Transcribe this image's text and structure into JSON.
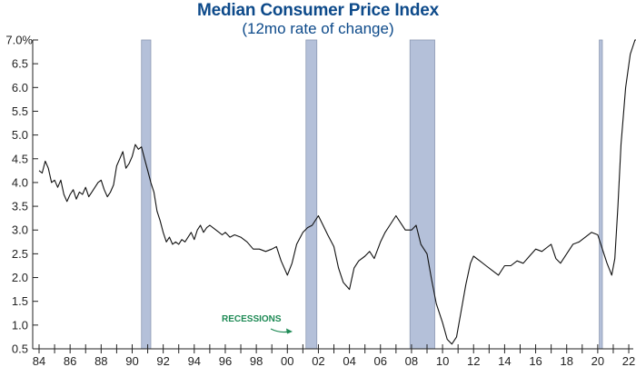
{
  "chart_data": {
    "type": "line",
    "title": "Median Consumer Price Index",
    "subtitle": "(12mo rate of change)",
    "xlabel": "",
    "ylabel": "",
    "ylim": [
      0.5,
      7.0
    ],
    "xlim": [
      1984,
      2022.6
    ],
    "y_ticks": [
      "7.0%",
      "6.5",
      "6.0",
      "5.5",
      "5.0",
      "4.5",
      "4.0",
      "3.5",
      "3.0",
      "2.5",
      "2.0",
      "1.5",
      "1.0",
      "0.5"
    ],
    "y_tick_values": [
      7.0,
      6.5,
      6.0,
      5.5,
      5.0,
      4.5,
      4.0,
      3.5,
      3.0,
      2.5,
      2.0,
      1.5,
      1.0,
      0.5
    ],
    "x_ticks": [
      "84",
      "86",
      "88",
      "90",
      "92",
      "94",
      "96",
      "98",
      "00",
      "02",
      "04",
      "06",
      "08",
      "10",
      "12",
      "14",
      "16",
      "18",
      "20",
      "22"
    ],
    "x_tick_values": [
      1984,
      1986,
      1988,
      1990,
      1992,
      1994,
      1996,
      1998,
      2000,
      2002,
      2004,
      2006,
      2008,
      2010,
      2012,
      2014,
      2016,
      2018,
      2020,
      2022
    ],
    "grid": false,
    "series": [
      {
        "name": "Median CPI 12mo rate of change",
        "color": "#111111",
        "x": [
          1984.0,
          1984.2,
          1984.4,
          1984.6,
          1984.8,
          1985.0,
          1985.2,
          1985.4,
          1985.6,
          1985.8,
          1986.0,
          1986.2,
          1986.4,
          1986.6,
          1986.8,
          1987.0,
          1987.2,
          1987.4,
          1987.6,
          1987.8,
          1988.0,
          1988.2,
          1988.4,
          1988.6,
          1988.8,
          1989.0,
          1989.2,
          1989.4,
          1989.6,
          1989.8,
          1990.0,
          1990.2,
          1990.4,
          1990.6,
          1990.8,
          1991.0,
          1991.2,
          1991.4,
          1991.6,
          1991.8,
          1992.0,
          1992.2,
          1992.4,
          1992.6,
          1992.8,
          1993.0,
          1993.2,
          1993.4,
          1993.6,
          1993.8,
          1994.0,
          1994.2,
          1994.4,
          1994.6,
          1994.8,
          1995.0,
          1995.2,
          1995.4,
          1995.6,
          1995.8,
          1996.0,
          1996.3,
          1996.6,
          1997.0,
          1997.4,
          1997.8,
          1998.2,
          1998.6,
          1999.0,
          1999.3,
          1999.6,
          2000.0,
          2000.3,
          2000.6,
          2001.0,
          2001.3,
          2001.6,
          2002.0,
          2002.3,
          2002.6,
          2003.0,
          2003.3,
          2003.6,
          2004.0,
          2004.3,
          2004.6,
          2005.0,
          2005.3,
          2005.6,
          2006.0,
          2006.3,
          2006.6,
          2007.0,
          2007.3,
          2007.6,
          2008.0,
          2008.3,
          2008.6,
          2009.0,
          2009.3,
          2009.6,
          2010.0,
          2010.3,
          2010.6,
          2010.9,
          2011.2,
          2011.5,
          2011.8,
          2012.0,
          2012.4,
          2012.8,
          2013.2,
          2013.6,
          2014.0,
          2014.4,
          2014.8,
          2015.2,
          2015.6,
          2016.0,
          2016.4,
          2016.8,
          2017.0,
          2017.3,
          2017.6,
          2018.0,
          2018.4,
          2018.8,
          2019.2,
          2019.6,
          2020.0,
          2020.3,
          2020.6,
          2020.9,
          2021.1,
          2021.3,
          2021.5,
          2021.8,
          2022.1,
          2022.4,
          2022.6
        ],
        "values": [
          4.25,
          4.2,
          4.45,
          4.3,
          4.0,
          4.05,
          3.9,
          4.05,
          3.75,
          3.6,
          3.75,
          3.85,
          3.65,
          3.8,
          3.75,
          3.9,
          3.7,
          3.8,
          3.9,
          4.0,
          4.05,
          3.85,
          3.7,
          3.8,
          3.95,
          4.35,
          4.5,
          4.65,
          4.3,
          4.4,
          4.55,
          4.8,
          4.7,
          4.75,
          4.5,
          4.25,
          4.0,
          3.8,
          3.4,
          3.2,
          2.95,
          2.75,
          2.85,
          2.7,
          2.75,
          2.7,
          2.8,
          2.75,
          2.85,
          2.95,
          2.8,
          3.0,
          3.1,
          2.95,
          3.05,
          3.1,
          3.05,
          3.0,
          2.95,
          2.9,
          2.95,
          2.85,
          2.9,
          2.85,
          2.75,
          2.6,
          2.6,
          2.55,
          2.6,
          2.65,
          2.35,
          2.05,
          2.3,
          2.7,
          2.95,
          3.05,
          3.1,
          3.3,
          3.1,
          2.9,
          2.65,
          2.2,
          1.9,
          1.75,
          2.2,
          2.35,
          2.45,
          2.55,
          2.4,
          2.75,
          2.95,
          3.1,
          3.3,
          3.15,
          3.0,
          3.0,
          3.1,
          2.7,
          2.5,
          1.95,
          1.45,
          1.05,
          0.7,
          0.6,
          0.75,
          1.3,
          1.85,
          2.3,
          2.45,
          2.35,
          2.25,
          2.15,
          2.05,
          2.25,
          2.25,
          2.35,
          2.3,
          2.45,
          2.6,
          2.55,
          2.65,
          2.7,
          2.4,
          2.3,
          2.5,
          2.7,
          2.75,
          2.85,
          2.95,
          2.9,
          2.6,
          2.3,
          2.05,
          2.4,
          3.5,
          4.8,
          6.0,
          6.7,
          7.0,
          7.05
        ]
      }
    ],
    "recessions": [
      {
        "start": 1990.6,
        "end": 1991.2
      },
      {
        "start": 2001.2,
        "end": 2001.9
      },
      {
        "start": 2007.9,
        "end": 2009.5
      },
      {
        "start": 2020.1,
        "end": 2020.3
      }
    ],
    "recession_color": "#b4c0d9",
    "annotations": [
      {
        "text": "RECESSIONS",
        "color": "#1e8a55",
        "points_to": "2001 recession"
      },
      {
        "text": "",
        "type": "marker-arrow",
        "color": "#c0212a",
        "at_value": 7.0,
        "placement": "right edge"
      }
    ]
  }
}
